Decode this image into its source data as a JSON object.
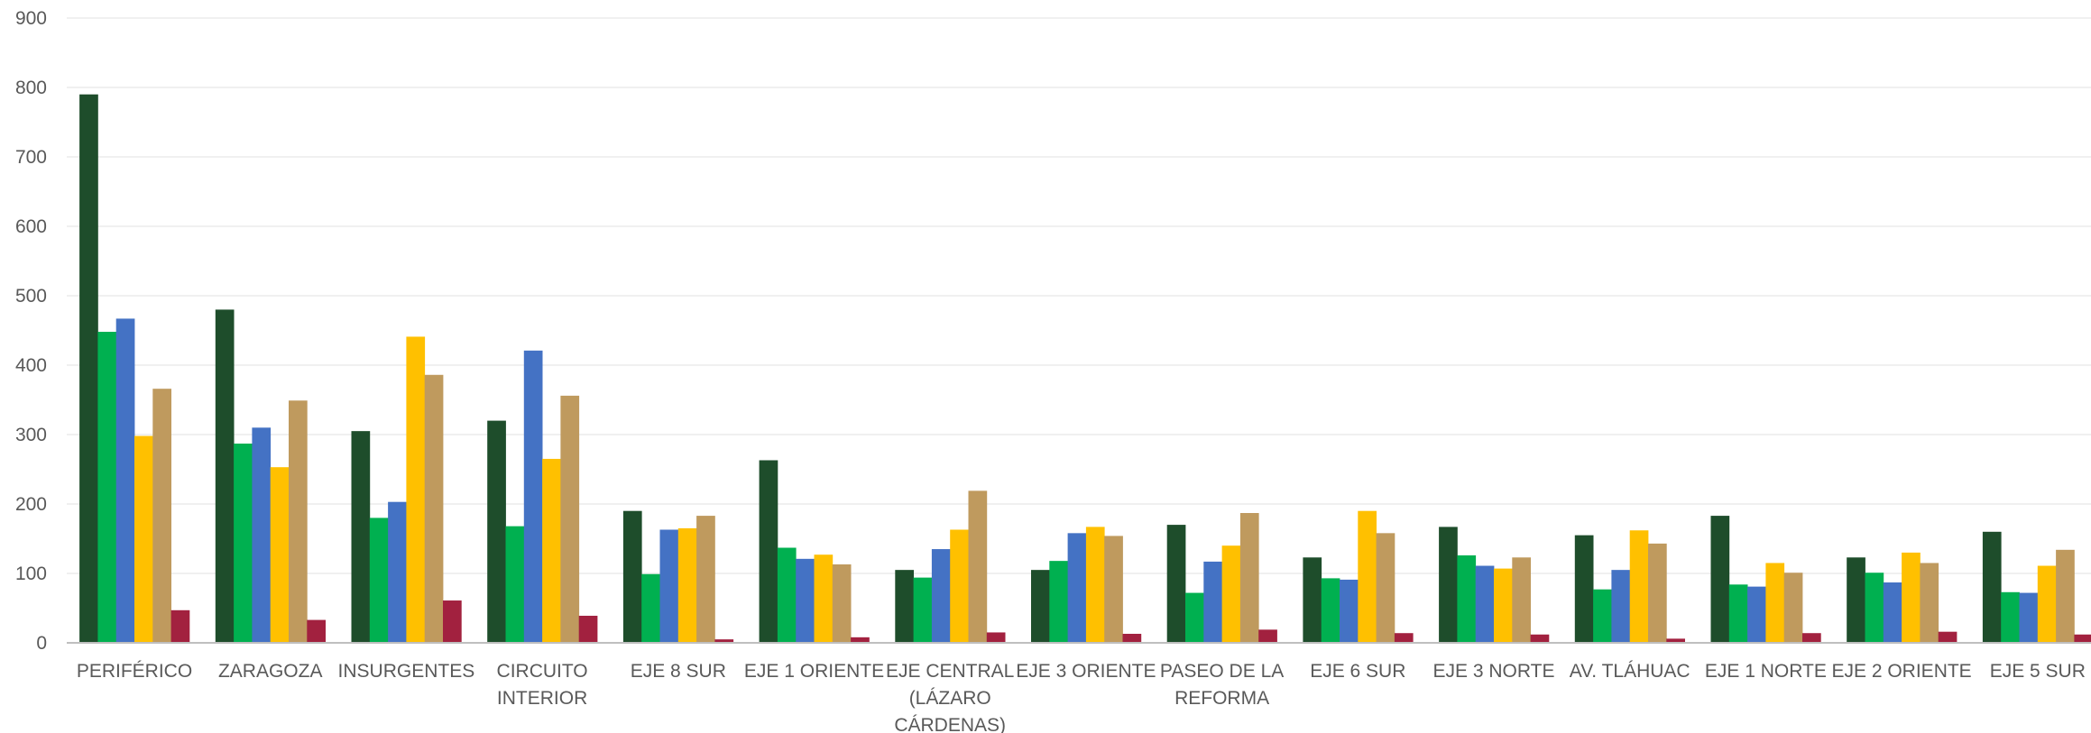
{
  "chart_data": {
    "type": "bar",
    "title": "",
    "xlabel": "",
    "ylabel": "",
    "ylim": [
      0,
      900
    ],
    "yticks": [
      "0",
      "100",
      "200",
      "300",
      "400",
      "500",
      "600",
      "700",
      "800",
      "900"
    ],
    "grid": true,
    "legend": "none",
    "categories": [
      [
        "PERIFÉRICO"
      ],
      [
        "ZARAGOZA"
      ],
      [
        "INSURGENTES"
      ],
      [
        "CIRCUITO",
        "INTERIOR"
      ],
      [
        "EJE 8 SUR"
      ],
      [
        "EJE 1 ORIENTE"
      ],
      [
        "EJE CENTRAL",
        "(LÁZARO",
        "CÁRDENAS)"
      ],
      [
        "EJE 3 ORIENTE"
      ],
      [
        "PASEO DE LA",
        "REFORMA"
      ],
      [
        "EJE 6 SUR"
      ],
      [
        "EJE 3 NORTE"
      ],
      [
        "AV. TLÁHUAC"
      ],
      [
        "EJE 1 NORTE"
      ],
      [
        "EJE 2 ORIENTE"
      ],
      [
        "EJE 5 SUR"
      ]
    ],
    "series": [
      {
        "color": "#1e4d2b",
        "values": [
          790,
          480,
          305,
          320,
          190,
          263,
          105,
          105,
          170,
          123,
          167,
          155,
          183,
          123,
          160
        ]
      },
      {
        "color": "#00b050",
        "values": [
          448,
          287,
          180,
          168,
          99,
          137,
          94,
          118,
          72,
          93,
          126,
          77,
          84,
          101,
          73
        ]
      },
      {
        "color": "#4472c4",
        "values": [
          467,
          310,
          203,
          421,
          163,
          121,
          135,
          158,
          117,
          91,
          111,
          105,
          81,
          87,
          72
        ]
      },
      {
        "color": "#ffc000",
        "values": [
          298,
          253,
          441,
          265,
          165,
          127,
          163,
          167,
          140,
          190,
          107,
          162,
          115,
          130,
          111
        ]
      },
      {
        "color": "#bf9a5e",
        "values": [
          366,
          349,
          386,
          356,
          183,
          113,
          219,
          154,
          187,
          158,
          123,
          143,
          101,
          115,
          134
        ]
      },
      {
        "color": "#a2213f",
        "values": [
          47,
          33,
          61,
          39,
          5,
          8,
          15,
          13,
          19,
          14,
          12,
          6,
          14,
          16,
          12
        ]
      }
    ]
  }
}
